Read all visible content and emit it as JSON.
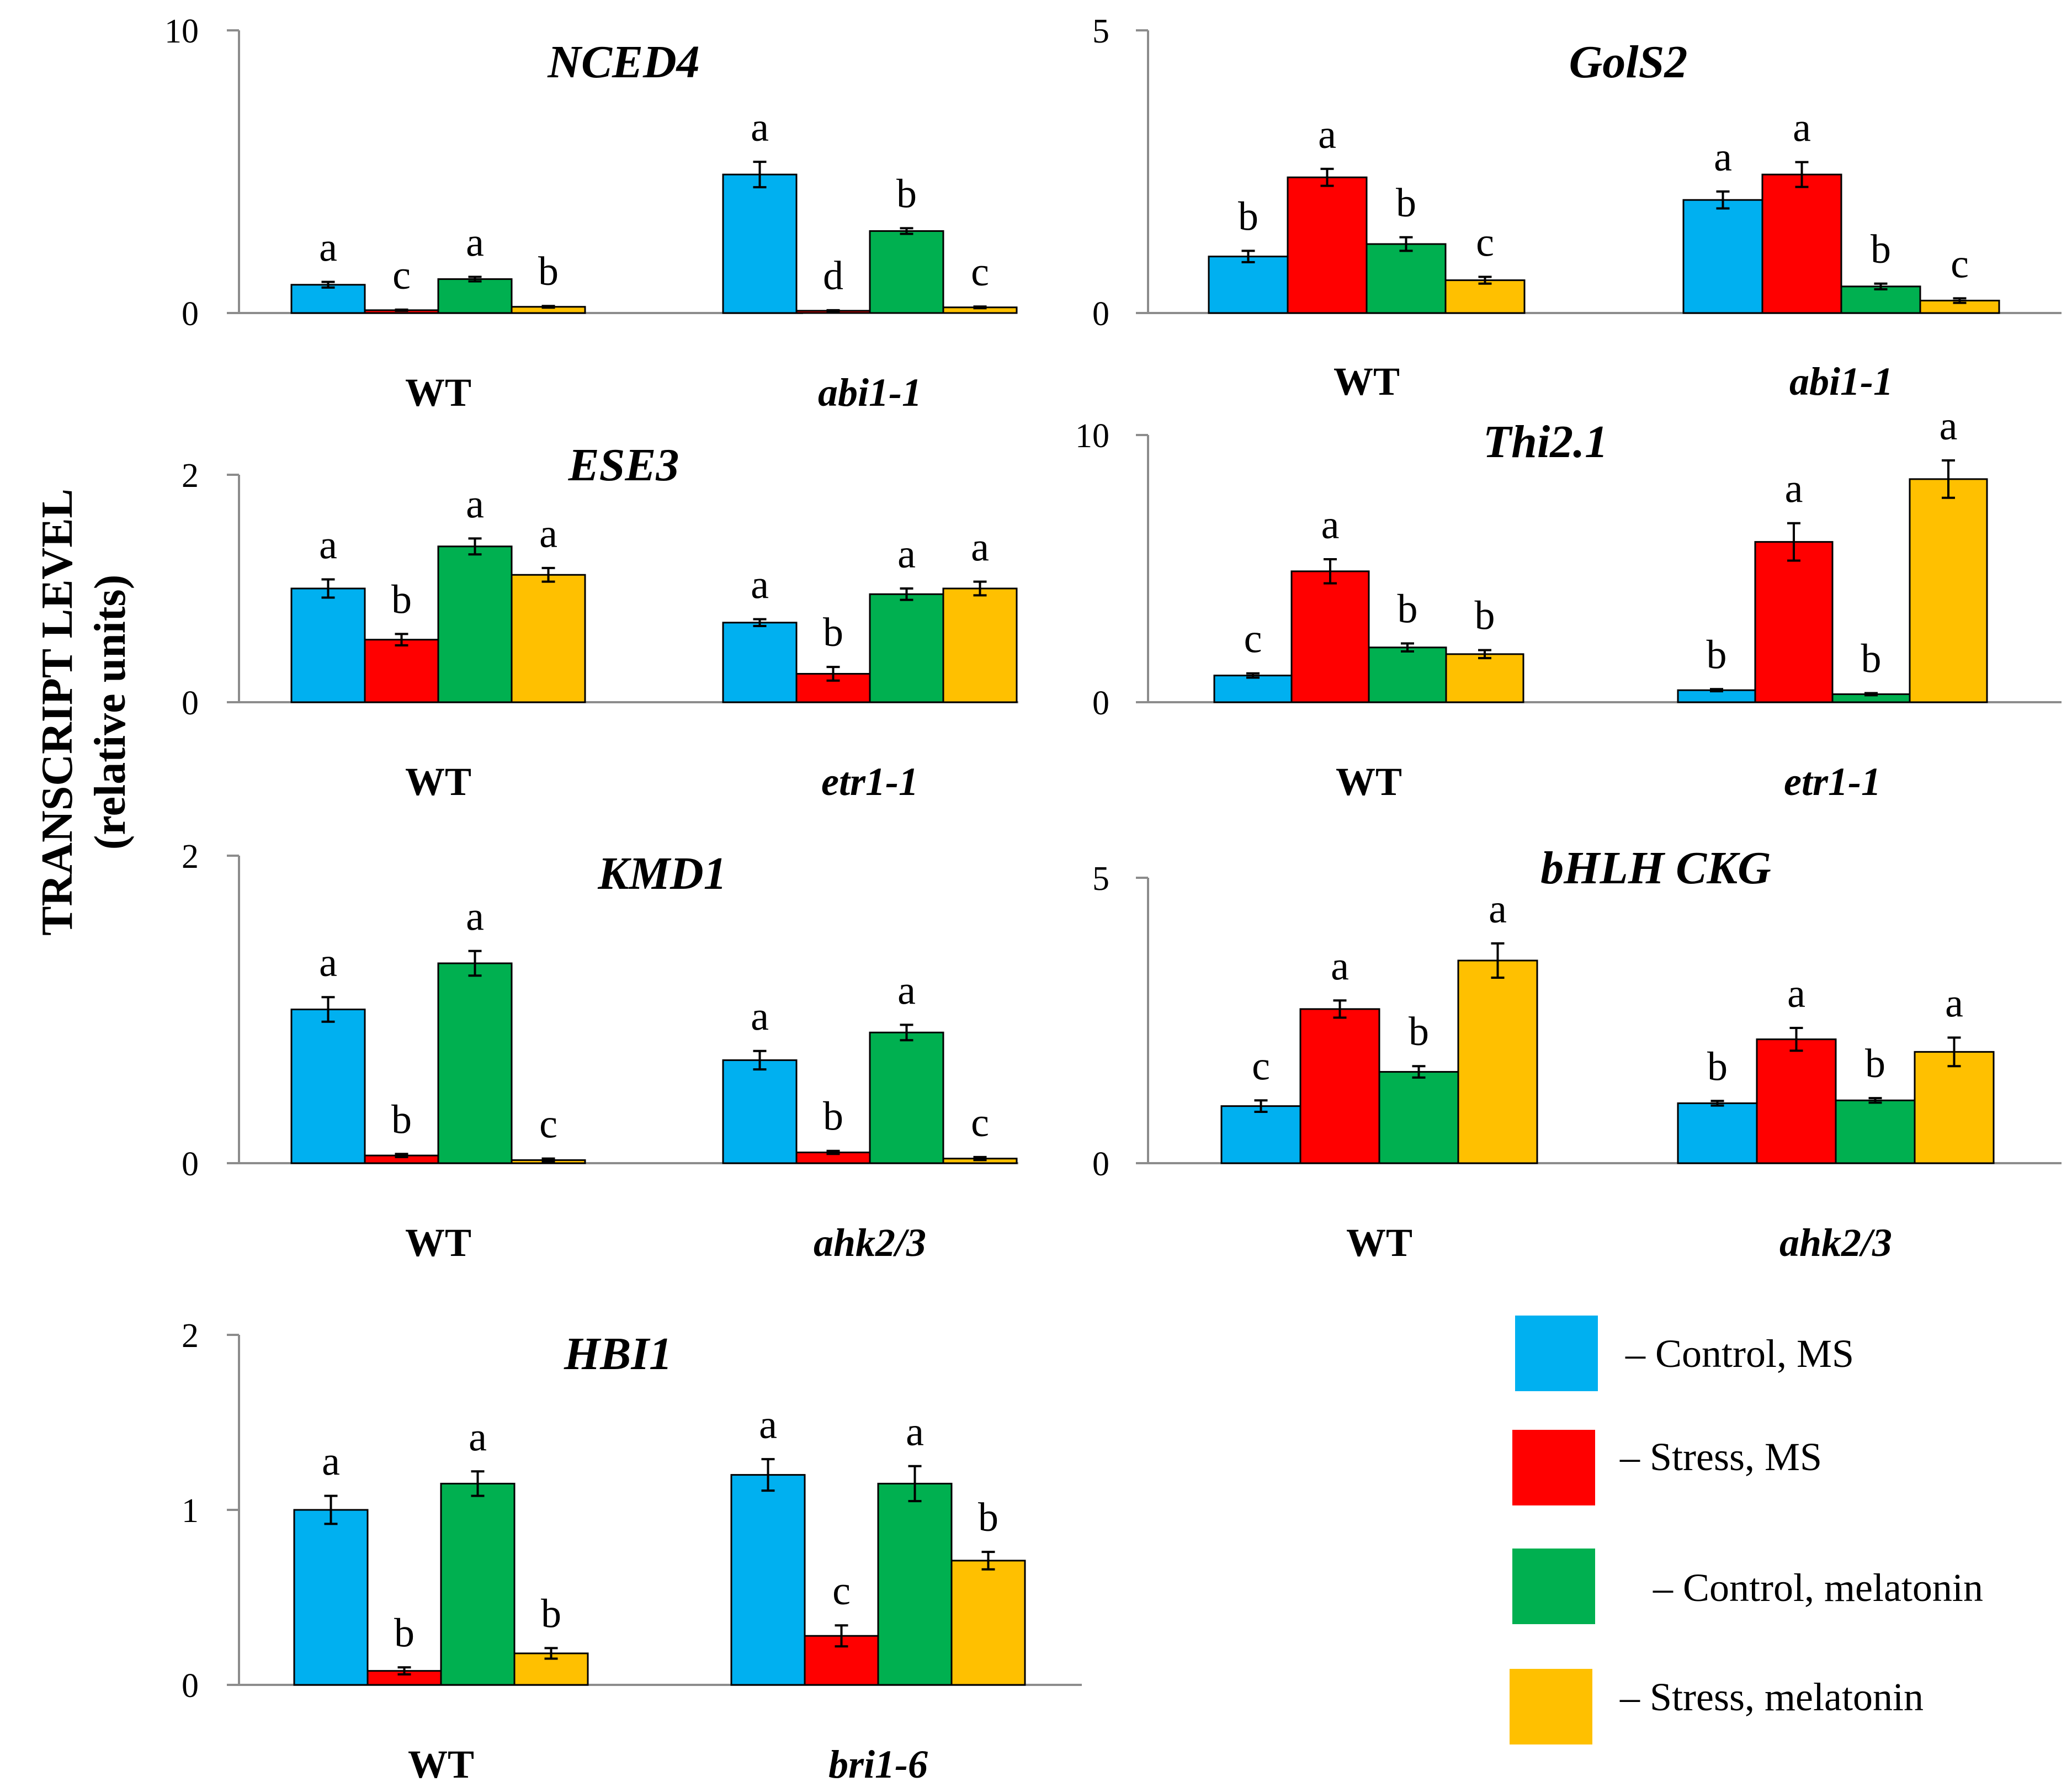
{
  "y_axis_label": {
    "line1": "TRANSCRIPT  LEVEL",
    "line2": "(relative units)"
  },
  "legend": [
    {
      "label": "– Control, MS",
      "color": "#00B0F0"
    },
    {
      "label": "– Stress, MS",
      "color": "#FF0000"
    },
    {
      "label": "– Control, melatonin",
      "color": "#00B050"
    },
    {
      "label": "– Stress, melatonin",
      "color": "#FFC000"
    }
  ],
  "chart_data": [
    {
      "type": "bar",
      "title": "NCED4",
      "categories": [
        "WT",
        "abi1-1"
      ],
      "ylim": [
        0,
        10
      ],
      "yticks": [
        "0",
        "10"
      ],
      "series": [
        {
          "name": "Control, MS",
          "values": [
            1.0,
            4.9
          ],
          "errors": [
            0.1,
            0.45
          ],
          "letters": [
            "a",
            "a"
          ]
        },
        {
          "name": "Stress, MS",
          "values": [
            0.1,
            0.08
          ],
          "errors": [
            0.02,
            0.02
          ],
          "letters": [
            "c",
            "d"
          ]
        },
        {
          "name": "Control, melatonin",
          "values": [
            1.2,
            2.9
          ],
          "errors": [
            0.08,
            0.1
          ],
          "letters": [
            "a",
            "b"
          ]
        },
        {
          "name": "Stress, melatonin",
          "values": [
            0.22,
            0.2
          ],
          "errors": [
            0.03,
            0.03
          ],
          "letters": [
            "b",
            "c"
          ]
        }
      ]
    },
    {
      "type": "bar",
      "title": "GolS2",
      "categories": [
        "WT",
        "abi1-1"
      ],
      "ylim": [
        0,
        5
      ],
      "yticks": [
        "0",
        "5"
      ],
      "series": [
        {
          "name": "Control, MS",
          "values": [
            1.0,
            2.0
          ],
          "errors": [
            0.1,
            0.15
          ],
          "letters": [
            "b",
            "a"
          ]
        },
        {
          "name": "Stress, MS",
          "values": [
            2.4,
            2.45
          ],
          "errors": [
            0.15,
            0.22
          ],
          "letters": [
            "a",
            "a"
          ]
        },
        {
          "name": "Control, melatonin",
          "values": [
            1.22,
            0.47
          ],
          "errors": [
            0.12,
            0.05
          ],
          "letters": [
            "b",
            "b"
          ]
        },
        {
          "name": "Stress, melatonin",
          "values": [
            0.58,
            0.22
          ],
          "errors": [
            0.06,
            0.04
          ],
          "letters": [
            "c",
            "c"
          ]
        }
      ]
    },
    {
      "type": "bar",
      "title": "ESE3",
      "categories": [
        "WT",
        "etr1-1"
      ],
      "ylim": [
        0,
        2
      ],
      "yticks": [
        "0",
        "2"
      ],
      "series": [
        {
          "name": "Control, MS",
          "values": [
            1.0,
            0.7
          ],
          "errors": [
            0.08,
            0.03
          ],
          "letters": [
            "a",
            "a"
          ]
        },
        {
          "name": "Stress, MS",
          "values": [
            0.55,
            0.25
          ],
          "errors": [
            0.05,
            0.06
          ],
          "letters": [
            "b",
            "b"
          ]
        },
        {
          "name": "Control, melatonin",
          "values": [
            1.37,
            0.95
          ],
          "errors": [
            0.07,
            0.05
          ],
          "letters": [
            "a",
            "a"
          ]
        },
        {
          "name": "Stress, melatonin",
          "values": [
            1.12,
            1.0
          ],
          "errors": [
            0.06,
            0.06
          ],
          "letters": [
            "a",
            "a"
          ]
        }
      ]
    },
    {
      "type": "bar",
      "title": "Thi2.1",
      "categories": [
        "WT",
        "etr1-1"
      ],
      "ylim": [
        0,
        10
      ],
      "yticks": [
        "0",
        "10"
      ],
      "series": [
        {
          "name": "Control, MS",
          "values": [
            1.0,
            0.45
          ],
          "errors": [
            0.08,
            0.04
          ],
          "letters": [
            "c",
            "b"
          ]
        },
        {
          "name": "Stress, MS",
          "values": [
            4.9,
            6.0
          ],
          "errors": [
            0.45,
            0.7
          ],
          "letters": [
            "a",
            "a"
          ]
        },
        {
          "name": "Control, melatonin",
          "values": [
            2.05,
            0.3
          ],
          "errors": [
            0.15,
            0.04
          ],
          "letters": [
            "b",
            "b"
          ]
        },
        {
          "name": "Stress, melatonin",
          "values": [
            1.8,
            8.35
          ],
          "errors": [
            0.15,
            0.7
          ],
          "letters": [
            "b",
            "a"
          ]
        }
      ]
    },
    {
      "type": "bar",
      "title": "KMD1",
      "categories": [
        "WT",
        "ahk2/3"
      ],
      "ylim": [
        0,
        2
      ],
      "yticks": [
        "0",
        "2"
      ],
      "series": [
        {
          "name": "Control, MS",
          "values": [
            1.0,
            0.67
          ],
          "errors": [
            0.08,
            0.06
          ],
          "letters": [
            "a",
            "a"
          ]
        },
        {
          "name": "Stress, MS",
          "values": [
            0.05,
            0.07
          ],
          "errors": [
            0.01,
            0.01
          ],
          "letters": [
            "b",
            "b"
          ]
        },
        {
          "name": "Control, melatonin",
          "values": [
            1.3,
            0.85
          ],
          "errors": [
            0.08,
            0.05
          ],
          "letters": [
            "a",
            "a"
          ]
        },
        {
          "name": "Stress, melatonin",
          "values": [
            0.02,
            0.03
          ],
          "errors": [
            0.01,
            0.01
          ],
          "letters": [
            "c",
            "c"
          ]
        }
      ]
    },
    {
      "type": "bar",
      "title": "bHLH CKG",
      "categories": [
        "WT",
        "ahk2/3"
      ],
      "ylim": [
        0,
        5
      ],
      "yticks": [
        "0",
        "5"
      ],
      "series": [
        {
          "name": "Control, MS",
          "values": [
            1.0,
            1.05
          ],
          "errors": [
            0.1,
            0.04
          ],
          "letters": [
            "c",
            "b"
          ]
        },
        {
          "name": "Stress, MS",
          "values": [
            2.7,
            2.17
          ],
          "errors": [
            0.15,
            0.2
          ],
          "letters": [
            "a",
            "a"
          ]
        },
        {
          "name": "Control, melatonin",
          "values": [
            1.6,
            1.1
          ],
          "errors": [
            0.1,
            0.04
          ],
          "letters": [
            "b",
            "b"
          ]
        },
        {
          "name": "Stress, melatonin",
          "values": [
            3.55,
            1.95
          ],
          "errors": [
            0.3,
            0.25
          ],
          "letters": [
            "a",
            "a"
          ]
        }
      ]
    },
    {
      "type": "bar",
      "title": "HBI1",
      "categories": [
        "WT",
        "bri1-6"
      ],
      "ylim": [
        0,
        2
      ],
      "yticks": [
        "0",
        "1",
        "2"
      ],
      "series": [
        {
          "name": "Control, MS",
          "values": [
            1.0,
            1.2
          ],
          "errors": [
            0.08,
            0.09
          ],
          "letters": [
            "a",
            "a"
          ]
        },
        {
          "name": "Stress, MS",
          "values": [
            0.08,
            0.28
          ],
          "errors": [
            0.02,
            0.06
          ],
          "letters": [
            "b",
            "c"
          ]
        },
        {
          "name": "Control, melatonin",
          "values": [
            1.15,
            1.15
          ],
          "errors": [
            0.07,
            0.1
          ],
          "letters": [
            "a",
            "a"
          ]
        },
        {
          "name": "Stress, melatonin",
          "values": [
            0.18,
            0.71
          ],
          "errors": [
            0.03,
            0.05
          ],
          "letters": [
            "b",
            "b"
          ]
        }
      ]
    }
  ]
}
